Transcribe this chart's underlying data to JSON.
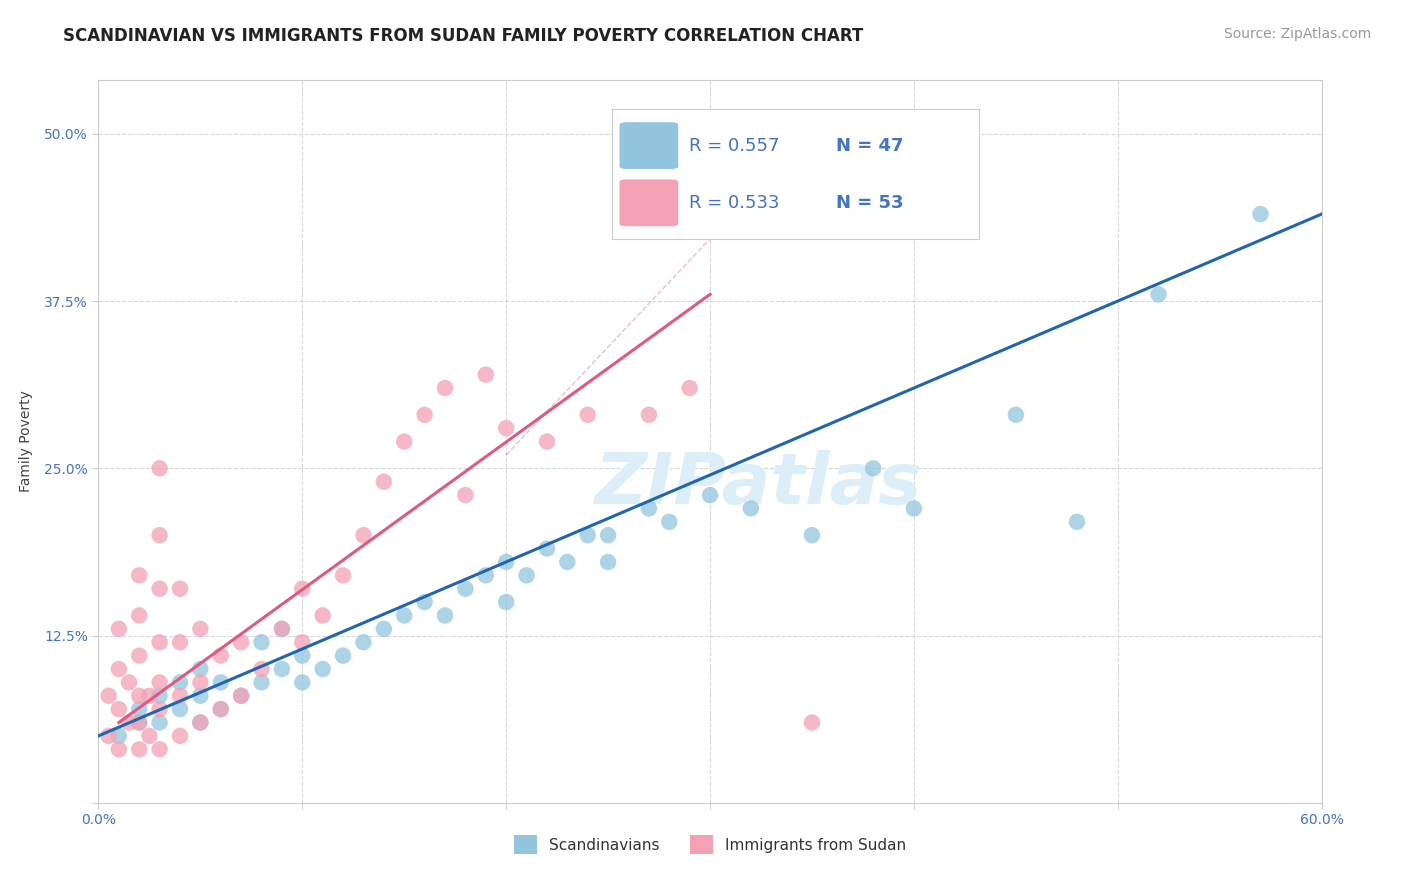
{
  "title": "SCANDINAVIAN VS IMMIGRANTS FROM SUDAN FAMILY POVERTY CORRELATION CHART",
  "source": "Source: ZipAtlas.com",
  "ylabel": "Family Poverty",
  "xlim": [
    0.0,
    0.6
  ],
  "ylim": [
    0.0,
    0.54
  ],
  "xticks": [
    0.0,
    0.1,
    0.2,
    0.3,
    0.4,
    0.5,
    0.6
  ],
  "xticklabels": [
    "0.0%",
    "",
    "",
    "",
    "",
    "",
    "60.0%"
  ],
  "yticks": [
    0.0,
    0.125,
    0.25,
    0.375,
    0.5
  ],
  "yticklabels": [
    "",
    "12.5%",
    "25.0%",
    "37.5%",
    "50.0%"
  ],
  "r_blue": 0.557,
  "n_blue": 47,
  "r_pink": 0.533,
  "n_pink": 53,
  "blue_color": "#92c5de",
  "pink_color": "#f4a0b5",
  "blue_line_color": "#2166ac",
  "pink_line_color": "#e05a80",
  "watermark": "ZIPatlas",
  "legend_label_blue": "Scandinavians",
  "legend_label_pink": "Immigrants from Sudan",
  "blue_scatter_x": [
    0.01,
    0.02,
    0.02,
    0.03,
    0.03,
    0.04,
    0.04,
    0.05,
    0.05,
    0.05,
    0.06,
    0.06,
    0.07,
    0.08,
    0.08,
    0.09,
    0.09,
    0.1,
    0.1,
    0.11,
    0.12,
    0.13,
    0.14,
    0.15,
    0.16,
    0.17,
    0.18,
    0.19,
    0.2,
    0.2,
    0.21,
    0.22,
    0.23,
    0.24,
    0.25,
    0.25,
    0.27,
    0.28,
    0.3,
    0.32,
    0.35,
    0.38,
    0.4,
    0.45,
    0.48,
    0.52,
    0.57
  ],
  "blue_scatter_y": [
    0.05,
    0.06,
    0.07,
    0.06,
    0.08,
    0.07,
    0.09,
    0.06,
    0.08,
    0.1,
    0.07,
    0.09,
    0.08,
    0.09,
    0.12,
    0.1,
    0.13,
    0.09,
    0.11,
    0.1,
    0.11,
    0.12,
    0.13,
    0.14,
    0.15,
    0.14,
    0.16,
    0.17,
    0.15,
    0.18,
    0.17,
    0.19,
    0.18,
    0.2,
    0.18,
    0.2,
    0.22,
    0.21,
    0.23,
    0.22,
    0.2,
    0.25,
    0.22,
    0.29,
    0.21,
    0.38,
    0.44
  ],
  "pink_scatter_x": [
    0.005,
    0.005,
    0.01,
    0.01,
    0.01,
    0.01,
    0.015,
    0.015,
    0.02,
    0.02,
    0.02,
    0.02,
    0.02,
    0.02,
    0.025,
    0.025,
    0.03,
    0.03,
    0.03,
    0.03,
    0.03,
    0.03,
    0.03,
    0.04,
    0.04,
    0.04,
    0.04,
    0.05,
    0.05,
    0.05,
    0.06,
    0.06,
    0.07,
    0.07,
    0.08,
    0.09,
    0.1,
    0.1,
    0.11,
    0.12,
    0.13,
    0.14,
    0.15,
    0.16,
    0.17,
    0.18,
    0.19,
    0.2,
    0.22,
    0.24,
    0.27,
    0.29,
    0.35
  ],
  "pink_scatter_y": [
    0.05,
    0.08,
    0.04,
    0.07,
    0.1,
    0.13,
    0.06,
    0.09,
    0.04,
    0.06,
    0.08,
    0.11,
    0.14,
    0.17,
    0.05,
    0.08,
    0.04,
    0.07,
    0.09,
    0.12,
    0.16,
    0.2,
    0.25,
    0.05,
    0.08,
    0.12,
    0.16,
    0.06,
    0.09,
    0.13,
    0.07,
    0.11,
    0.08,
    0.12,
    0.1,
    0.13,
    0.12,
    0.16,
    0.14,
    0.17,
    0.2,
    0.24,
    0.27,
    0.29,
    0.31,
    0.23,
    0.32,
    0.28,
    0.27,
    0.29,
    0.29,
    0.31,
    0.06
  ],
  "grid_color": "#d8d8d8",
  "background_color": "#ffffff",
  "tick_color": "#4472c4",
  "title_fontsize": 12,
  "axis_label_fontsize": 10,
  "tick_fontsize": 10,
  "source_fontsize": 10,
  "watermark_fontsize": 52,
  "watermark_color": "#dceef8"
}
